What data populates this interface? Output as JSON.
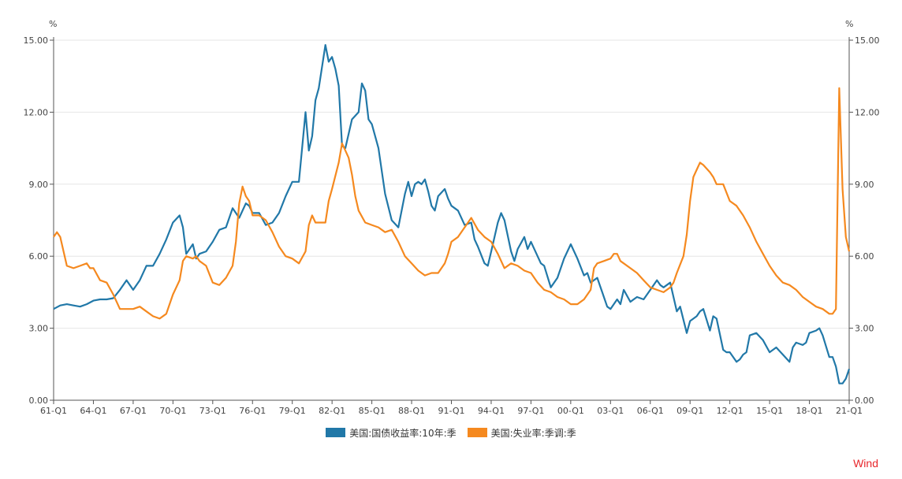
{
  "chart_data": {
    "type": "line",
    "left_unit": "%",
    "right_unit": "%",
    "ylim": [
      0,
      15
    ],
    "yticks": [
      "0.00",
      "3.00",
      "6.00",
      "9.00",
      "12.00",
      "15.00"
    ],
    "xticks": [
      "61-Q1",
      "64-Q1",
      "67-Q1",
      "70-Q1",
      "73-Q1",
      "76-Q1",
      "79-Q1",
      "82-Q1",
      "85-Q1",
      "88-Q1",
      "91-Q1",
      "94-Q1",
      "97-Q1",
      "00-Q1",
      "03-Q1",
      "06-Q1",
      "09-Q1",
      "12-Q1",
      "15-Q1",
      "18-Q1",
      "21-Q1"
    ],
    "grid": "horizontal",
    "legend_position": "bottom-center",
    "start_year": 1961,
    "series": [
      {
        "name": "美国:国债收益率:10年:季",
        "color": "#2178a8",
        "points": [
          [
            1961.0,
            3.8
          ],
          [
            1961.5,
            3.95
          ],
          [
            1962.0,
            4.0
          ],
          [
            1962.5,
            3.95
          ],
          [
            1963.0,
            3.9
          ],
          [
            1963.5,
            4.0
          ],
          [
            1964.0,
            4.15
          ],
          [
            1964.5,
            4.2
          ],
          [
            1965.0,
            4.2
          ],
          [
            1965.5,
            4.25
          ],
          [
            1966.0,
            4.6
          ],
          [
            1966.5,
            5.0
          ],
          [
            1967.0,
            4.6
          ],
          [
            1967.5,
            5.0
          ],
          [
            1968.0,
            5.6
          ],
          [
            1968.5,
            5.6
          ],
          [
            1969.0,
            6.1
          ],
          [
            1969.5,
            6.7
          ],
          [
            1970.0,
            7.4
          ],
          [
            1970.5,
            7.7
          ],
          [
            1970.75,
            7.2
          ],
          [
            1971.0,
            6.1
          ],
          [
            1971.5,
            6.5
          ],
          [
            1971.75,
            5.9
          ],
          [
            1972.0,
            6.1
          ],
          [
            1972.5,
            6.2
          ],
          [
            1973.0,
            6.6
          ],
          [
            1973.5,
            7.1
          ],
          [
            1974.0,
            7.2
          ],
          [
            1974.5,
            8.0
          ],
          [
            1975.0,
            7.6
          ],
          [
            1975.5,
            8.2
          ],
          [
            1975.75,
            8.1
          ],
          [
            1976.0,
            7.8
          ],
          [
            1976.5,
            7.8
          ],
          [
            1977.0,
            7.3
          ],
          [
            1977.5,
            7.4
          ],
          [
            1978.0,
            7.8
          ],
          [
            1978.5,
            8.5
          ],
          [
            1979.0,
            9.1
          ],
          [
            1979.5,
            9.1
          ],
          [
            1980.0,
            12.0
          ],
          [
            1980.25,
            10.4
          ],
          [
            1980.5,
            11.0
          ],
          [
            1980.75,
            12.5
          ],
          [
            1981.0,
            13.0
          ],
          [
            1981.5,
            14.8
          ],
          [
            1981.75,
            14.1
          ],
          [
            1982.0,
            14.3
          ],
          [
            1982.25,
            13.8
          ],
          [
            1982.5,
            13.1
          ],
          [
            1982.75,
            10.6
          ],
          [
            1983.0,
            10.5
          ],
          [
            1983.5,
            11.7
          ],
          [
            1984.0,
            12.0
          ],
          [
            1984.25,
            13.2
          ],
          [
            1984.5,
            12.9
          ],
          [
            1984.75,
            11.7
          ],
          [
            1985.0,
            11.5
          ],
          [
            1985.5,
            10.5
          ],
          [
            1986.0,
            8.6
          ],
          [
            1986.5,
            7.5
          ],
          [
            1987.0,
            7.2
          ],
          [
            1987.5,
            8.6
          ],
          [
            1987.75,
            9.1
          ],
          [
            1988.0,
            8.5
          ],
          [
            1988.25,
            9.0
          ],
          [
            1988.5,
            9.1
          ],
          [
            1988.75,
            9.0
          ],
          [
            1989.0,
            9.2
          ],
          [
            1989.25,
            8.7
          ],
          [
            1989.5,
            8.1
          ],
          [
            1989.75,
            7.9
          ],
          [
            1990.0,
            8.5
          ],
          [
            1990.5,
            8.8
          ],
          [
            1990.75,
            8.4
          ],
          [
            1991.0,
            8.1
          ],
          [
            1991.5,
            7.9
          ],
          [
            1992.0,
            7.3
          ],
          [
            1992.5,
            7.4
          ],
          [
            1992.75,
            6.7
          ],
          [
            1993.0,
            6.4
          ],
          [
            1993.5,
            5.7
          ],
          [
            1993.75,
            5.6
          ],
          [
            1994.0,
            6.2
          ],
          [
            1994.5,
            7.4
          ],
          [
            1994.75,
            7.8
          ],
          [
            1995.0,
            7.5
          ],
          [
            1995.5,
            6.2
          ],
          [
            1995.75,
            5.8
          ],
          [
            1996.0,
            6.3
          ],
          [
            1996.5,
            6.8
          ],
          [
            1996.75,
            6.3
          ],
          [
            1997.0,
            6.6
          ],
          [
            1997.5,
            6.0
          ],
          [
            1997.75,
            5.7
          ],
          [
            1998.0,
            5.6
          ],
          [
            1998.5,
            4.7
          ],
          [
            1999.0,
            5.1
          ],
          [
            1999.5,
            5.9
          ],
          [
            2000.0,
            6.5
          ],
          [
            2000.5,
            5.9
          ],
          [
            2001.0,
            5.2
          ],
          [
            2001.25,
            5.3
          ],
          [
            2001.5,
            4.9
          ],
          [
            2002.0,
            5.1
          ],
          [
            2002.5,
            4.3
          ],
          [
            2002.75,
            3.9
          ],
          [
            2003.0,
            3.8
          ],
          [
            2003.5,
            4.2
          ],
          [
            2003.75,
            4.0
          ],
          [
            2004.0,
            4.6
          ],
          [
            2004.5,
            4.1
          ],
          [
            2004.75,
            4.2
          ],
          [
            2005.0,
            4.3
          ],
          [
            2005.5,
            4.2
          ],
          [
            2006.0,
            4.6
          ],
          [
            2006.5,
            5.0
          ],
          [
            2006.75,
            4.8
          ],
          [
            2007.0,
            4.7
          ],
          [
            2007.5,
            4.9
          ],
          [
            2008.0,
            3.7
          ],
          [
            2008.25,
            3.9
          ],
          [
            2008.75,
            2.8
          ],
          [
            2009.0,
            3.3
          ],
          [
            2009.5,
            3.5
          ],
          [
            2009.75,
            3.7
          ],
          [
            2010.0,
            3.8
          ],
          [
            2010.5,
            2.9
          ],
          [
            2010.75,
            3.5
          ],
          [
            2011.0,
            3.4
          ],
          [
            2011.5,
            2.1
          ],
          [
            2011.75,
            2.0
          ],
          [
            2012.0,
            2.0
          ],
          [
            2012.5,
            1.6
          ],
          [
            2012.75,
            1.7
          ],
          [
            2013.0,
            1.9
          ],
          [
            2013.25,
            2.0
          ],
          [
            2013.5,
            2.7
          ],
          [
            2014.0,
            2.8
          ],
          [
            2014.5,
            2.5
          ],
          [
            2015.0,
            2.0
          ],
          [
            2015.5,
            2.2
          ],
          [
            2016.0,
            1.9
          ],
          [
            2016.5,
            1.6
          ],
          [
            2016.75,
            2.2
          ],
          [
            2017.0,
            2.4
          ],
          [
            2017.5,
            2.3
          ],
          [
            2017.75,
            2.4
          ],
          [
            2018.0,
            2.8
          ],
          [
            2018.5,
            2.9
          ],
          [
            2018.75,
            3.0
          ],
          [
            2019.0,
            2.7
          ],
          [
            2019.5,
            1.8
          ],
          [
            2019.75,
            1.8
          ],
          [
            2020.0,
            1.4
          ],
          [
            2020.25,
            0.7
          ],
          [
            2020.5,
            0.7
          ],
          [
            2020.75,
            0.9
          ],
          [
            2021.0,
            1.3
          ]
        ]
      },
      {
        "name": "美国:失业率:季调:季",
        "color": "#f5891f",
        "points": [
          [
            1961.0,
            6.8
          ],
          [
            1961.25,
            7.0
          ],
          [
            1961.5,
            6.8
          ],
          [
            1961.75,
            6.2
          ],
          [
            1962.0,
            5.6
          ],
          [
            1962.5,
            5.5
          ],
          [
            1963.0,
            5.6
          ],
          [
            1963.5,
            5.7
          ],
          [
            1963.75,
            5.5
          ],
          [
            1964.0,
            5.5
          ],
          [
            1964.5,
            5.0
          ],
          [
            1965.0,
            4.9
          ],
          [
            1965.5,
            4.4
          ],
          [
            1966.0,
            3.8
          ],
          [
            1966.5,
            3.8
          ],
          [
            1967.0,
            3.8
          ],
          [
            1967.5,
            3.9
          ],
          [
            1968.0,
            3.7
          ],
          [
            1968.5,
            3.5
          ],
          [
            1969.0,
            3.4
          ],
          [
            1969.5,
            3.6
          ],
          [
            1970.0,
            4.4
          ],
          [
            1970.5,
            5.0
          ],
          [
            1970.75,
            5.8
          ],
          [
            1971.0,
            6.0
          ],
          [
            1971.5,
            5.9
          ],
          [
            1971.75,
            6.0
          ],
          [
            1972.0,
            5.8
          ],
          [
            1972.5,
            5.6
          ],
          [
            1973.0,
            4.9
          ],
          [
            1973.5,
            4.8
          ],
          [
            1974.0,
            5.1
          ],
          [
            1974.5,
            5.6
          ],
          [
            1974.75,
            6.6
          ],
          [
            1975.0,
            8.2
          ],
          [
            1975.25,
            8.9
          ],
          [
            1975.5,
            8.5
          ],
          [
            1975.75,
            8.3
          ],
          [
            1976.0,
            7.7
          ],
          [
            1976.5,
            7.7
          ],
          [
            1977.0,
            7.5
          ],
          [
            1977.5,
            7.0
          ],
          [
            1978.0,
            6.4
          ],
          [
            1978.5,
            6.0
          ],
          [
            1979.0,
            5.9
          ],
          [
            1979.5,
            5.7
          ],
          [
            1980.0,
            6.2
          ],
          [
            1980.25,
            7.3
          ],
          [
            1980.5,
            7.7
          ],
          [
            1980.75,
            7.4
          ],
          [
            1981.0,
            7.4
          ],
          [
            1981.5,
            7.4
          ],
          [
            1981.75,
            8.3
          ],
          [
            1982.0,
            8.8
          ],
          [
            1982.5,
            9.9
          ],
          [
            1982.75,
            10.7
          ],
          [
            1983.0,
            10.4
          ],
          [
            1983.25,
            10.1
          ],
          [
            1983.5,
            9.4
          ],
          [
            1983.75,
            8.5
          ],
          [
            1984.0,
            7.9
          ],
          [
            1984.5,
            7.4
          ],
          [
            1985.0,
            7.3
          ],
          [
            1985.5,
            7.2
          ],
          [
            1986.0,
            7.0
          ],
          [
            1986.5,
            7.1
          ],
          [
            1987.0,
            6.6
          ],
          [
            1987.5,
            6.0
          ],
          [
            1988.0,
            5.7
          ],
          [
            1988.5,
            5.4
          ],
          [
            1989.0,
            5.2
          ],
          [
            1989.5,
            5.3
          ],
          [
            1990.0,
            5.3
          ],
          [
            1990.5,
            5.7
          ],
          [
            1990.75,
            6.1
          ],
          [
            1991.0,
            6.6
          ],
          [
            1991.5,
            6.8
          ],
          [
            1992.0,
            7.2
          ],
          [
            1992.5,
            7.6
          ],
          [
            1993.0,
            7.1
          ],
          [
            1993.5,
            6.8
          ],
          [
            1994.0,
            6.6
          ],
          [
            1994.5,
            6.1
          ],
          [
            1995.0,
            5.5
          ],
          [
            1995.5,
            5.7
          ],
          [
            1996.0,
            5.6
          ],
          [
            1996.5,
            5.4
          ],
          [
            1997.0,
            5.3
          ],
          [
            1997.5,
            4.9
          ],
          [
            1998.0,
            4.6
          ],
          [
            1998.5,
            4.5
          ],
          [
            1999.0,
            4.3
          ],
          [
            1999.5,
            4.2
          ],
          [
            2000.0,
            4.0
          ],
          [
            2000.5,
            4.0
          ],
          [
            2001.0,
            4.2
          ],
          [
            2001.5,
            4.6
          ],
          [
            2001.75,
            5.5
          ],
          [
            2002.0,
            5.7
          ],
          [
            2002.5,
            5.8
          ],
          [
            2003.0,
            5.9
          ],
          [
            2003.25,
            6.1
          ],
          [
            2003.5,
            6.1
          ],
          [
            2003.75,
            5.8
          ],
          [
            2004.0,
            5.7
          ],
          [
            2004.5,
            5.5
          ],
          [
            2005.0,
            5.3
          ],
          [
            2005.5,
            5.0
          ],
          [
            2006.0,
            4.7
          ],
          [
            2006.5,
            4.6
          ],
          [
            2007.0,
            4.5
          ],
          [
            2007.5,
            4.7
          ],
          [
            2007.75,
            4.9
          ],
          [
            2008.0,
            5.3
          ],
          [
            2008.5,
            6.0
          ],
          [
            2008.75,
            6.9
          ],
          [
            2009.0,
            8.3
          ],
          [
            2009.25,
            9.3
          ],
          [
            2009.5,
            9.6
          ],
          [
            2009.75,
            9.9
          ],
          [
            2010.0,
            9.8
          ],
          [
            2010.5,
            9.5
          ],
          [
            2010.75,
            9.3
          ],
          [
            2011.0,
            9.0
          ],
          [
            2011.5,
            9.0
          ],
          [
            2012.0,
            8.3
          ],
          [
            2012.5,
            8.1
          ],
          [
            2013.0,
            7.7
          ],
          [
            2013.5,
            7.2
          ],
          [
            2014.0,
            6.6
          ],
          [
            2014.5,
            6.1
          ],
          [
            2015.0,
            5.6
          ],
          [
            2015.5,
            5.2
          ],
          [
            2016.0,
            4.9
          ],
          [
            2016.5,
            4.8
          ],
          [
            2017.0,
            4.6
          ],
          [
            2017.5,
            4.3
          ],
          [
            2018.0,
            4.1
          ],
          [
            2018.5,
            3.9
          ],
          [
            2019.0,
            3.8
          ],
          [
            2019.5,
            3.6
          ],
          [
            2019.75,
            3.6
          ],
          [
            2020.0,
            3.8
          ],
          [
            2020.25,
            13.0
          ],
          [
            2020.5,
            8.8
          ],
          [
            2020.75,
            6.8
          ],
          [
            2021.0,
            6.2
          ]
        ]
      }
    ]
  },
  "legend": {
    "series1_label": "美国:国债收益率:10年:季",
    "series2_label": "美国:失业率:季调:季"
  },
  "source_label": "Wind",
  "colors": {
    "series1": "#2178a8",
    "series2": "#f5891f",
    "source": "#e8262b",
    "grid": "#e6e6e6",
    "axis": "#555555"
  }
}
